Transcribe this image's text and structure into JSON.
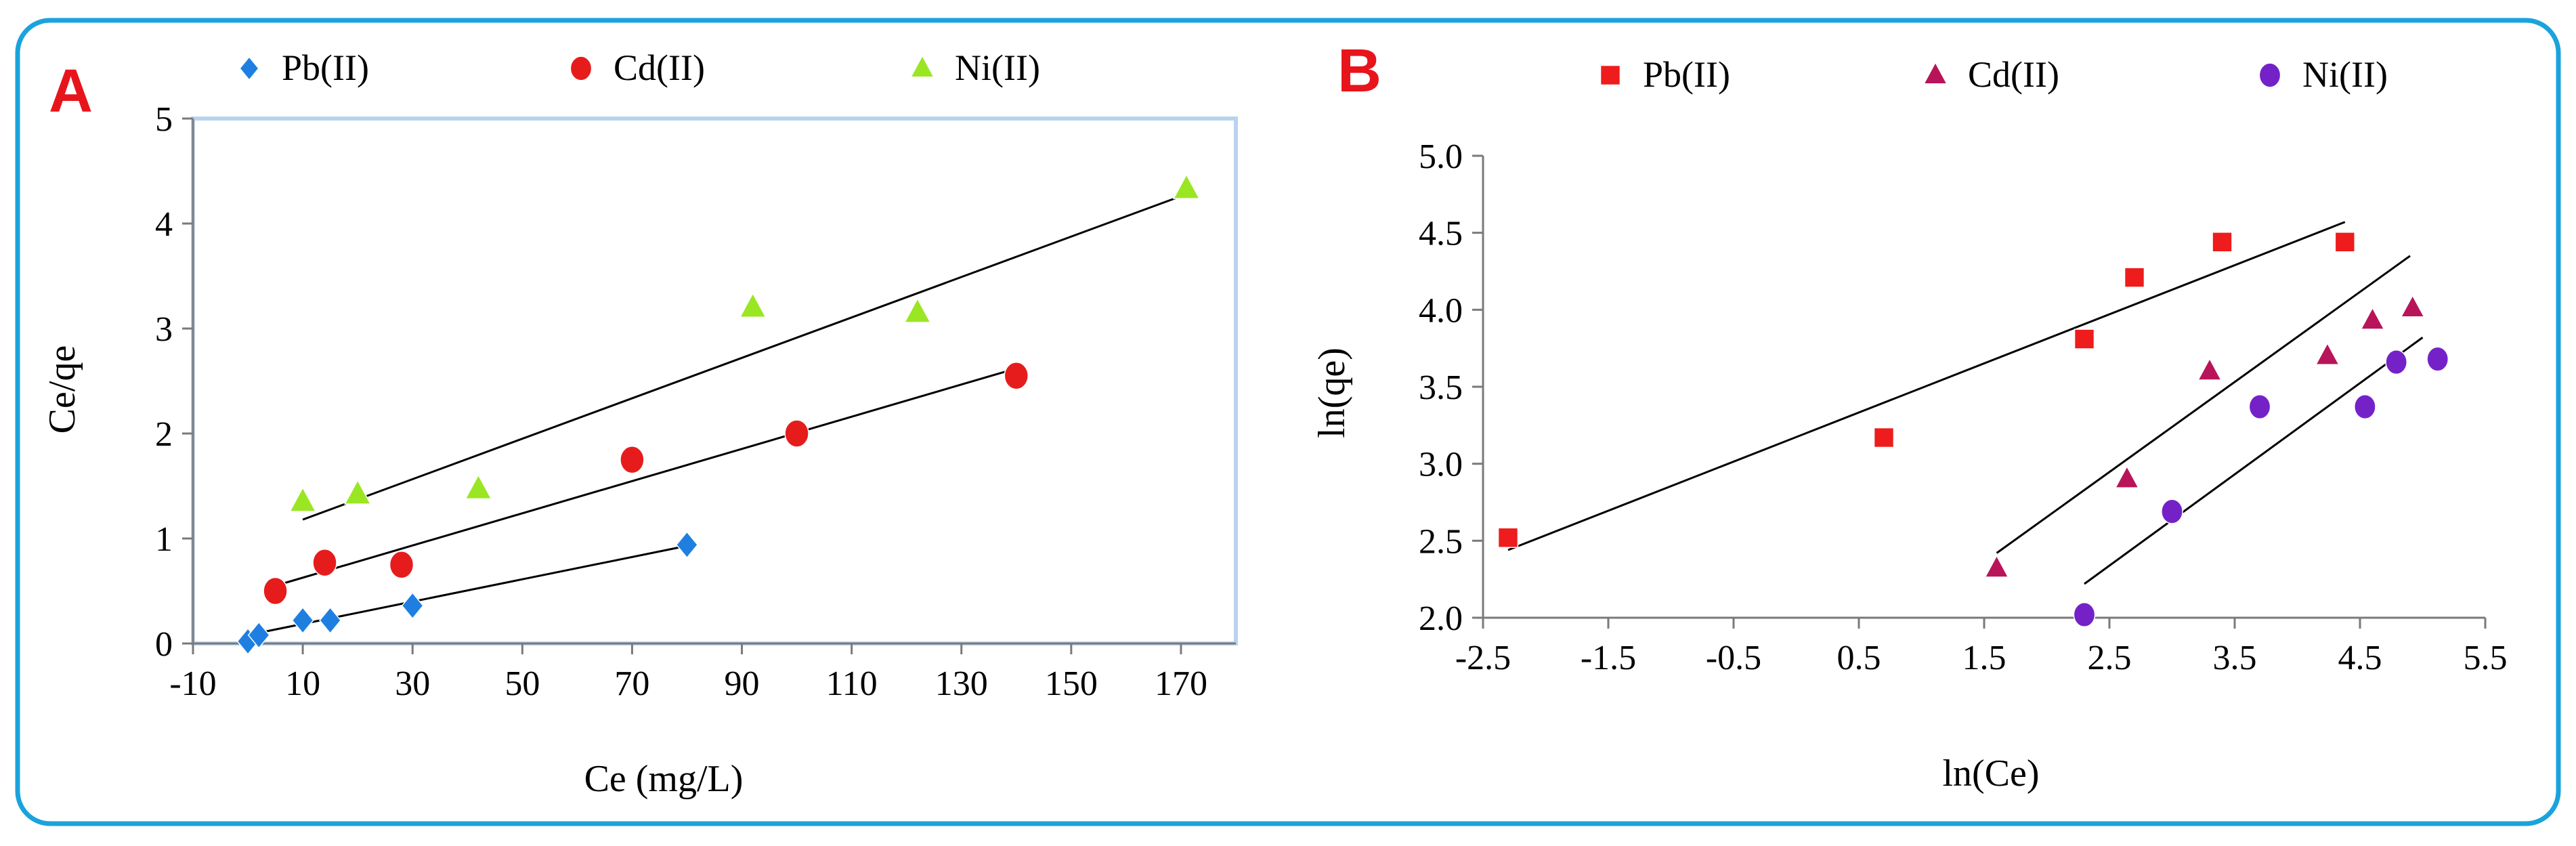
{
  "colors": {
    "frame": "#1aa3dc",
    "panel_letter": "#e8141c",
    "axis": "#7a7a7a",
    "plot_area_border": "#b9d3ef",
    "fit_line": "#000000",
    "pb_a": "#1f7fe0",
    "cd_a": "#e61c1c",
    "ni_a": "#9ae622",
    "pb_b": "#ee1c1c",
    "cd_b": "#b8145a",
    "ni_b": "#7422c8"
  },
  "chart_data": [
    {
      "panel": "A",
      "type": "scatter",
      "title": "",
      "xlabel": "Ce (mg/L)",
      "ylabel": "Ce/qe",
      "xlim": [
        -10,
        180
      ],
      "ylim": [
        0,
        5
      ],
      "xticks": [
        -10,
        10,
        30,
        50,
        70,
        90,
        110,
        130,
        150,
        170
      ],
      "yticks": [
        0,
        1,
        2,
        3,
        4,
        5
      ],
      "xtick_labels": [
        "-10",
        "10",
        "30",
        "50",
        "70",
        "90",
        "110",
        "130",
        "150",
        "170"
      ],
      "ytick_labels": [
        "0",
        "1",
        "2",
        "3",
        "4",
        "5"
      ],
      "grid": false,
      "legend_position": "top",
      "series": [
        {
          "name": "Pb(II)",
          "marker": "diamond",
          "color": "#1f7fe0",
          "x": [
            0,
            2,
            10,
            15,
            30,
            80
          ],
          "y": [
            0.02,
            0.08,
            0.22,
            0.22,
            0.36,
            0.94
          ],
          "fit": {
            "x": [
              0,
              80
            ],
            "y": [
              0.08,
              0.93
            ]
          }
        },
        {
          "name": "Cd(II)",
          "marker": "circle",
          "color": "#e61c1c",
          "x": [
            5,
            14,
            28,
            70,
            100,
            140
          ],
          "y": [
            0.5,
            0.77,
            0.75,
            1.75,
            2.0,
            2.55
          ],
          "fit": {
            "x": [
              5,
              140
            ],
            "y": [
              0.55,
              2.62
            ]
          }
        },
        {
          "name": "Ni(II)",
          "marker": "triangle",
          "color": "#9ae622",
          "x": [
            10,
            20,
            42,
            92,
            122,
            171
          ],
          "y": [
            1.35,
            1.42,
            1.47,
            3.2,
            3.15,
            4.33
          ],
          "fit": {
            "x": [
              10,
              171
            ],
            "y": [
              1.18,
              4.28
            ]
          }
        }
      ]
    },
    {
      "panel": "B",
      "type": "scatter",
      "title": "",
      "xlabel": "ln(Ce)",
      "ylabel": "ln(qe)",
      "xlim": [
        -2.5,
        5.5
      ],
      "ylim": [
        2.0,
        5.0
      ],
      "xticks": [
        -2.5,
        -1.5,
        -0.5,
        0.5,
        1.5,
        2.5,
        3.5,
        4.5,
        5.5
      ],
      "yticks": [
        2.0,
        2.5,
        3.0,
        3.5,
        4.0,
        4.5,
        5.0
      ],
      "xtick_labels": [
        "-2.5",
        "-1.5",
        "-0.5",
        "0.5",
        "1.5",
        "2.5",
        "3.5",
        "4.5",
        "5.5"
      ],
      "ytick_labels": [
        "2.0",
        "2.5",
        "3.0",
        "3.5",
        "4.0",
        "4.5",
        "5.0"
      ],
      "grid": false,
      "legend_position": "top",
      "series": [
        {
          "name": "Pb(II)",
          "marker": "square",
          "color": "#ee1c1c",
          "x": [
            -2.3,
            0.7,
            2.3,
            2.7,
            3.4,
            4.38
          ],
          "y": [
            2.52,
            3.17,
            3.81,
            4.21,
            4.44,
            4.44
          ],
          "fit": {
            "x": [
              -2.3,
              4.38
            ],
            "y": [
              2.44,
              4.57
            ]
          }
        },
        {
          "name": "Cd(II)",
          "marker": "triangle",
          "color": "#b8145a",
          "x": [
            1.6,
            2.64,
            3.3,
            4.24,
            4.6,
            4.92
          ],
          "y": [
            2.32,
            2.9,
            3.6,
            3.7,
            3.93,
            4.01
          ],
          "fit": {
            "x": [
              1.6,
              4.9
            ],
            "y": [
              2.42,
              4.35
            ]
          }
        },
        {
          "name": "Ni(II)",
          "marker": "circle",
          "color": "#7422c8",
          "x": [
            2.3,
            3.0,
            3.7,
            4.54,
            4.79,
            5.12
          ],
          "y": [
            2.02,
            2.69,
            3.37,
            3.37,
            3.66,
            3.68
          ],
          "fit": {
            "x": [
              2.3,
              5.0
            ],
            "y": [
              2.22,
              3.82
            ]
          }
        }
      ]
    }
  ]
}
